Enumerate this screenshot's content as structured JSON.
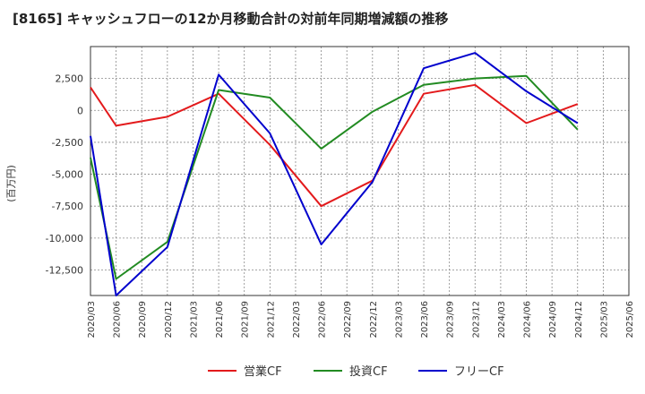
{
  "chart_data": {
    "type": "line",
    "title": "[8165]  キャッシュフローの12か月移動合計の対前年同期増減額の推移",
    "ylabel": "(百万円)",
    "xlabel": "",
    "ylim": [
      -14500,
      5000
    ],
    "yticks": [
      2500,
      0,
      -2500,
      -5000,
      -7500,
      -10000,
      -12500
    ],
    "ytick_labels": [
      "2,500",
      "0",
      "-2,500",
      "-5,000",
      "-7,500",
      "-10,000",
      "-12,500"
    ],
    "x_tick_labels": [
      "2020/03",
      "2020/06",
      "2020/09",
      "2020/12",
      "2021/03",
      "2021/06",
      "2021/09",
      "2021/12",
      "2022/03",
      "2022/06",
      "2022/09",
      "2022/12",
      "2023/03",
      "2023/06",
      "2023/09",
      "2023/12",
      "2024/03",
      "2024/06",
      "2024/09",
      "2024/12",
      "2025/03",
      "2025/06"
    ],
    "grid": true,
    "legend_position": "bottom",
    "series": [
      {
        "name": "営業CF",
        "color": "#e31a1c",
        "x": [
          "2020/03",
          "2020/06",
          "2020/12",
          "2021/06",
          "2021/12",
          "2022/06",
          "2022/12",
          "2023/06",
          "2023/12",
          "2024/06",
          "2024/12"
        ],
        "values": [
          1800,
          -1200,
          -500,
          1300,
          -2700,
          -7500,
          -5500,
          1300,
          2000,
          -1000,
          500
        ]
      },
      {
        "name": "投資CF",
        "color": "#228b22",
        "x": [
          "2020/03",
          "2020/06",
          "2020/12",
          "2021/06",
          "2021/12",
          "2022/06",
          "2022/12",
          "2023/06",
          "2023/12",
          "2024/06",
          "2024/12"
        ],
        "values": [
          -3700,
          -13200,
          -10300,
          1600,
          1000,
          -3000,
          -100,
          2000,
          2500,
          2700,
          -1500
        ]
      },
      {
        "name": "フリーCF",
        "color": "#0000cd",
        "x": [
          "2020/03",
          "2020/06",
          "2020/12",
          "2021/06",
          "2021/12",
          "2022/06",
          "2022/12",
          "2023/06",
          "2023/12",
          "2024/06",
          "2024/12"
        ],
        "values": [
          -2000,
          -14500,
          -10700,
          2800,
          -1800,
          -10500,
          -5600,
          3300,
          4500,
          1500,
          -1000
        ]
      }
    ]
  }
}
